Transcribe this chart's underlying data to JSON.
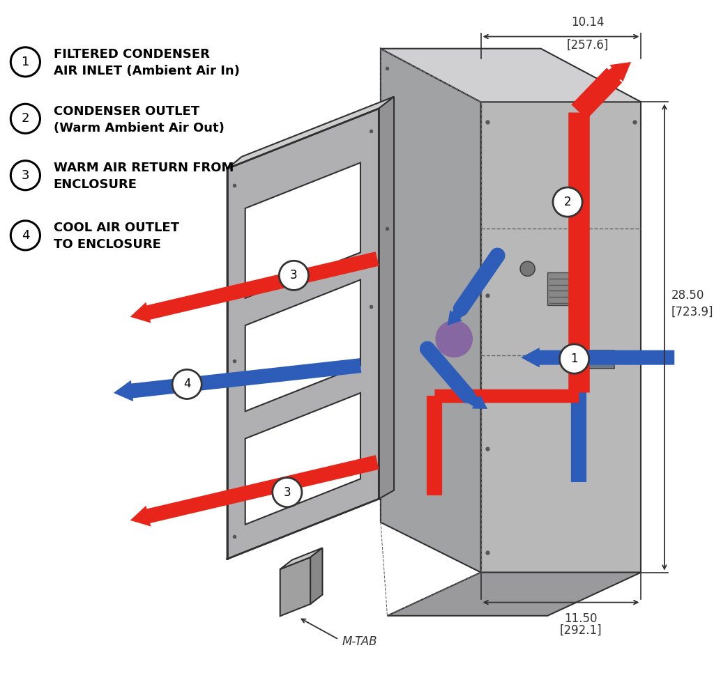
{
  "background_color": "#ffffff",
  "legend_items": [
    {
      "num": "1",
      "text_line1": "FILTERED CONDENSER",
      "text_line2": "AIR INLET (Ambient Air In)"
    },
    {
      "num": "2",
      "text_line1": "CONDENSER OUTLET",
      "text_line2": "(Warm Ambient Air Out)"
    },
    {
      "num": "3",
      "text_line1": "WARM AIR RETURN FROM",
      "text_line2": "ENCLOSURE"
    },
    {
      "num": "4",
      "text_line1": "COOL AIR OUTLET",
      "text_line2": "TO ENCLOSURE"
    }
  ],
  "dim_top_label1": "10.14",
  "dim_top_label2": "[257.6]",
  "dim_right_label1": "28.50",
  "dim_right_label2": "[723.9]",
  "dim_bot_label1": "11.50",
  "dim_bot_label2": "[292.1]",
  "mtab_label": "M-TAB",
  "red": "#e8251a",
  "blue": "#2d5db8",
  "purple": "#7b4fa0",
  "gray_right_face": "#b8b8b8",
  "gray_left_face": "#a0a2a4",
  "gray_top_face": "#d0d0d2",
  "gray_bottom_face": "#9a9a9c",
  "gray_panel": "#b0b0b2",
  "gray_panel_side": "#929294",
  "gray_panel_top": "#cecece",
  "dark_edge": "#303030"
}
